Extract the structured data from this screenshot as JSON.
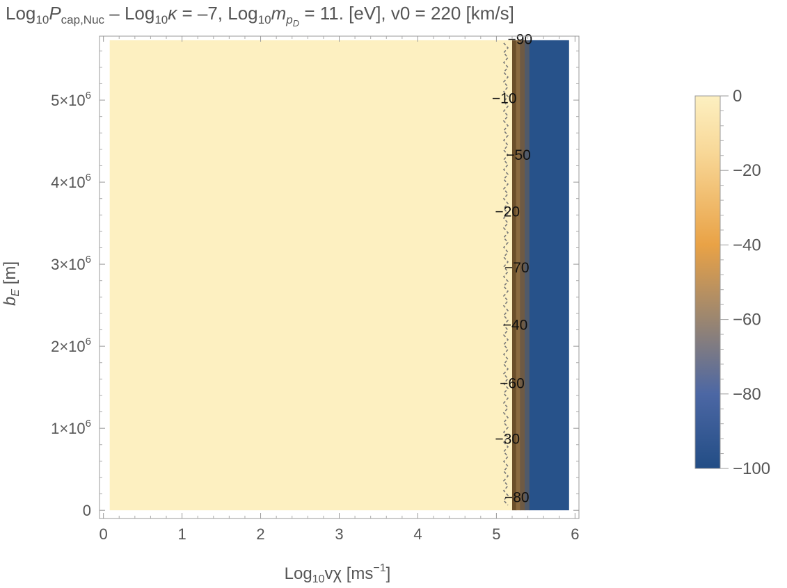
{
  "title": {
    "log10": "Log",
    "sub10": "10",
    "p": "P",
    "p_sub": "cap,Nuc",
    "dash": " – Log",
    "sub10b": "10",
    "kappa": "κ",
    "kappa_val": " = –7, Log",
    "sub10c": "10",
    "m": "m",
    "m_sub": "p",
    "m_subsub": "D",
    "m_val": " = 11. [eV], v0 = 220 [km/s]"
  },
  "chart_data": {
    "type": "heatmap",
    "xlabel": "Log10vχ [ms−1]",
    "ylabel": "bE [m]",
    "xlim": [
      -0.05,
      6.05
    ],
    "ylim": [
      -100000,
      5780000
    ],
    "x_ticks": [
      0,
      1,
      2,
      3,
      4,
      5,
      6
    ],
    "x_tick_labels": [
      "0",
      "1",
      "2",
      "3",
      "4",
      "5",
      "6"
    ],
    "y_ticks": [
      0,
      1000000,
      2000000,
      3000000,
      4000000,
      5000000
    ],
    "y_tick_labels": [
      "0",
      "1×10^6",
      "2×10^6",
      "3×10^6",
      "4×10^6",
      "5×10^6"
    ],
    "data_x_range": [
      0.08,
      5.92
    ],
    "data_y_range": [
      0,
      5730000
    ],
    "color_bands": [
      {
        "x_from": 0.08,
        "x_to": 5.2,
        "value": 0,
        "color": "#fdf0c1"
      },
      {
        "x_from": 5.2,
        "x_to": 5.25,
        "value": -40,
        "color": "#6b4f2a"
      },
      {
        "x_from": 5.25,
        "x_to": 5.3,
        "value": -55,
        "color": "#8a6a40"
      },
      {
        "x_from": 5.3,
        "x_to": 5.36,
        "value": -70,
        "color": "#6e5a44"
      },
      {
        "x_from": 5.36,
        "x_to": 5.42,
        "value": -85,
        "color": "#505a6a"
      },
      {
        "x_from": 5.42,
        "x_to": 5.92,
        "value": -100,
        "color": "#27528a"
      }
    ],
    "contour_dashed_x": 5.12,
    "contour_labels": [
      {
        "text": "−90",
        "x": 5.3,
        "y": 5740000
      },
      {
        "text": "−10",
        "x": 5.1,
        "y": 5020000
      },
      {
        "text": "−50",
        "x": 5.28,
        "y": 4330000
      },
      {
        "text": "−20",
        "x": 5.14,
        "y": 3640000
      },
      {
        "text": "−70",
        "x": 5.26,
        "y": 2960000
      },
      {
        "text": "−40",
        "x": 5.24,
        "y": 2260000
      },
      {
        "text": "−60",
        "x": 5.2,
        "y": 1550000
      },
      {
        "text": "−30",
        "x": 5.14,
        "y": 870000
      },
      {
        "text": "−80",
        "x": 5.26,
        "y": 160000
      }
    ],
    "colorbar": {
      "min": -100,
      "max": 0,
      "ticks": [
        0,
        -20,
        -40,
        -60,
        -80,
        -100
      ],
      "tick_labels": [
        "0",
        "−20",
        "−40",
        "−60",
        "−80",
        "−100"
      ],
      "stops": [
        {
          "value": 0,
          "color": "#fdf0c1"
        },
        {
          "value": -15,
          "color": "#f8d898"
        },
        {
          "value": -40,
          "color": "#e9a246"
        },
        {
          "value": -60,
          "color": "#9b8670"
        },
        {
          "value": -80,
          "color": "#4c67a4"
        },
        {
          "value": -100,
          "color": "#224d85"
        }
      ]
    }
  }
}
